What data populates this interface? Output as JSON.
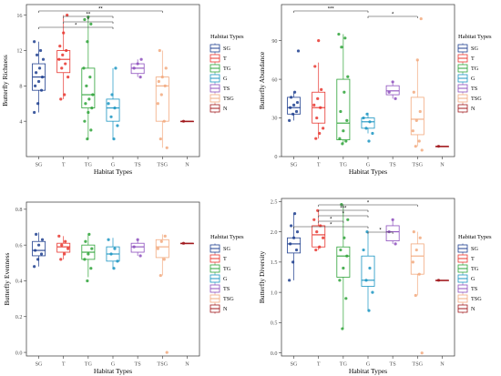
{
  "colors": {
    "SG": "#1f3f8f",
    "T": "#e8352e",
    "TG": "#2ea338",
    "G": "#1b95c2",
    "TS": "#8d4fbd",
    "TSG": "#f2a97e",
    "N": "#a1191d"
  },
  "chart_data": [
    {
      "type": "box",
      "categories": [
        "SG",
        "T",
        "TG",
        "G",
        "TS",
        "TSG",
        "N"
      ],
      "xlabel": "Habitat Types",
      "ylabel": "Butterfly Richness",
      "ylim": [
        0,
        17.2
      ],
      "yticks": [
        4,
        8,
        12,
        16
      ],
      "legend_title": "Habitat Types",
      "boxes": [
        {
          "q1": 7.5,
          "median": 9,
          "q3": 10.5,
          "lo": 5,
          "hi": 13
        },
        {
          "q1": 9.5,
          "median": 11,
          "q3": 12,
          "lo": 6.5,
          "hi": 16
        },
        {
          "q1": 5.5,
          "median": 7,
          "q3": 10,
          "lo": 2,
          "hi": 15.8
        },
        {
          "q1": 4,
          "median": 5.5,
          "q3": 6.5,
          "lo": 2,
          "hi": 10
        },
        {
          "q1": 9.4,
          "median": 10,
          "q3": 10.5,
          "lo": 9,
          "hi": 11
        },
        {
          "q1": 4,
          "median": 8,
          "q3": 9,
          "lo": 1,
          "hi": 12
        },
        {
          "q1": 4,
          "median": 4,
          "q3": 4,
          "lo": 4,
          "hi": 4
        }
      ],
      "points": [
        [
          5,
          6,
          7.5,
          8,
          8.5,
          9,
          9.5,
          10,
          11,
          11.5,
          12,
          13
        ],
        [
          6.5,
          7,
          9,
          10,
          10.5,
          11,
          11.5,
          12,
          12.5,
          14,
          16
        ],
        [
          2,
          3,
          4,
          5,
          5.5,
          6,
          6.5,
          7,
          8,
          9,
          10,
          13,
          15,
          15.5,
          15.8
        ],
        [
          2,
          3.5,
          4.5,
          5.5,
          6,
          7,
          10
        ],
        [
          9,
          10,
          10.5,
          11
        ],
        [
          1,
          2,
          4,
          6,
          7,
          8,
          8.5,
          9,
          10,
          12
        ],
        [
          4
        ]
      ],
      "significance": [
        {
          "from": 0,
          "to": 5,
          "label": "**"
        },
        {
          "from": 1,
          "to": 3,
          "label": "**"
        },
        {
          "from": 1,
          "to": 3,
          "label": "*"
        },
        {
          "from": 0,
          "to": 3,
          "label": "*"
        }
      ]
    },
    {
      "type": "box",
      "categories": [
        "SG",
        "T",
        "TG",
        "G",
        "TS",
        "TSG",
        "N"
      ],
      "xlabel": "Habitat Types",
      "ylabel": "Butterfly Abundance",
      "ylim": [
        0,
        118
      ],
      "yticks": [
        0,
        30,
        60,
        90
      ],
      "legend_title": "Habitat Types",
      "boxes": [
        {
          "q1": 33,
          "median": 38,
          "q3": 46,
          "lo": 28,
          "hi": 50
        },
        {
          "q1": 26,
          "median": 38,
          "q3": 50,
          "lo": 14,
          "hi": 73
        },
        {
          "q1": 13,
          "median": 26,
          "q3": 60,
          "lo": 10,
          "hi": 95
        },
        {
          "q1": 22,
          "median": 27,
          "q3": 30,
          "lo": 18,
          "hi": 34
        },
        {
          "q1": 48,
          "median": 51,
          "q3": 55,
          "lo": 45,
          "hi": 58
        },
        {
          "q1": 17,
          "median": 29,
          "q3": 46,
          "lo": 8,
          "hi": 75
        },
        {
          "q1": 8,
          "median": 8,
          "q3": 8,
          "lo": 8,
          "hi": 8
        }
      ],
      "points": [
        [
          28,
          33,
          35,
          38,
          40,
          42,
          46,
          50,
          82
        ],
        [
          14,
          18,
          22,
          30,
          38,
          40,
          45,
          52,
          70,
          90
        ],
        [
          10,
          12,
          14,
          20,
          28,
          35,
          50,
          62,
          85,
          92,
          95
        ],
        [
          12,
          18,
          22,
          27,
          30,
          33
        ],
        [
          45,
          50,
          58
        ],
        [
          5,
          8,
          12,
          20,
          28,
          35,
          50,
          75,
          107
        ],
        [
          8
        ]
      ],
      "significance": [
        {
          "from": 0,
          "to": 3,
          "label": "***"
        },
        {
          "from": 3,
          "to": 5,
          "label": "*"
        }
      ]
    },
    {
      "type": "box",
      "categories": [
        "SG",
        "T",
        "TG",
        "G",
        "TS",
        "TSG",
        "N"
      ],
      "xlabel": "Habitat Types",
      "ylabel": "Butterfly Evenness",
      "ylim": [
        -0.02,
        0.84
      ],
      "yticks": [
        0.0,
        0.2,
        0.4,
        0.6,
        0.8
      ],
      "legend_title": "Habitat Types",
      "boxes": [
        {
          "q1": 0.54,
          "median": 0.57,
          "q3": 0.62,
          "lo": 0.48,
          "hi": 0.67
        },
        {
          "q1": 0.56,
          "median": 0.59,
          "q3": 0.61,
          "lo": 0.52,
          "hi": 0.65
        },
        {
          "q1": 0.52,
          "median": 0.56,
          "q3": 0.6,
          "lo": 0.42,
          "hi": 0.66
        },
        {
          "q1": 0.51,
          "median": 0.55,
          "q3": 0.59,
          "lo": 0.47,
          "hi": 0.64
        },
        {
          "q1": 0.56,
          "median": 0.59,
          "q3": 0.61,
          "lo": 0.54,
          "hi": 0.63
        },
        {
          "q1": 0.53,
          "median": 0.59,
          "q3": 0.63,
          "lo": 0.43,
          "hi": 0.66
        },
        {
          "q1": 0.61,
          "median": 0.61,
          "q3": 0.61,
          "lo": 0.61,
          "hi": 0.61
        }
      ],
      "points": [
        [
          0.48,
          0.52,
          0.55,
          0.57,
          0.6,
          0.63,
          0.66
        ],
        [
          0.52,
          0.55,
          0.58,
          0.6,
          0.62,
          0.65
        ],
        [
          0.4,
          0.47,
          0.52,
          0.55,
          0.58,
          0.62,
          0.66
        ],
        [
          0.47,
          0.51,
          0.55,
          0.58,
          0.63
        ],
        [
          0.54,
          0.59,
          0.63
        ],
        [
          0.0,
          0.43,
          0.52,
          0.58,
          0.62,
          0.65
        ],
        [
          0.61
        ]
      ],
      "significance": []
    },
    {
      "type": "box",
      "categories": [
        "SG",
        "T",
        "TG",
        "G",
        "TS",
        "TSG",
        "N"
      ],
      "xlabel": "Habitat Types",
      "ylabel": "Butterfly Diversity",
      "ylim": [
        -0.05,
        2.55
      ],
      "yticks": [
        0.0,
        0.5,
        1.0,
        1.5,
        2.0,
        2.5
      ],
      "legend_title": "Habitat Types",
      "boxes": [
        {
          "q1": 1.65,
          "median": 1.8,
          "q3": 1.9,
          "lo": 1.2,
          "hi": 2.3
        },
        {
          "q1": 1.75,
          "median": 1.95,
          "q3": 2.1,
          "lo": 1.7,
          "hi": 2.35
        },
        {
          "q1": 1.25,
          "median": 1.6,
          "q3": 1.75,
          "lo": 0.4,
          "hi": 2.45
        },
        {
          "q1": 1.1,
          "median": 1.2,
          "q3": 1.6,
          "lo": 0.7,
          "hi": 2.0
        },
        {
          "q1": 1.85,
          "median": 2.0,
          "q3": 2.1,
          "lo": 1.8,
          "hi": 2.2
        },
        {
          "q1": 1.3,
          "median": 1.6,
          "q3": 1.8,
          "lo": 0.95,
          "hi": 2.0
        },
        {
          "q1": 1.2,
          "median": 1.2,
          "q3": 1.2,
          "lo": 1.2,
          "hi": 1.2
        }
      ],
      "points": [
        [
          1.2,
          1.5,
          1.7,
          1.8,
          1.9,
          2.0,
          2.1,
          2.3
        ],
        [
          1.7,
          1.75,
          1.9,
          2.0,
          2.1,
          2.2,
          2.35
        ],
        [
          0.4,
          0.9,
          1.2,
          1.4,
          1.6,
          1.7,
          1.9,
          2.2,
          2.45
        ],
        [
          0.7,
          1.0,
          1.2,
          1.4,
          1.7,
          2.0
        ],
        [
          1.8,
          2.0,
          2.2
        ],
        [
          0.0,
          0.95,
          1.3,
          1.5,
          1.7,
          1.9,
          2.0
        ],
        [
          1.2
        ]
      ],
      "significance": [
        {
          "from": 1,
          "to": 5,
          "label": "*"
        },
        {
          "from": 1,
          "to": 3,
          "label": "***"
        },
        {
          "from": 1,
          "to": 3,
          "label": "*"
        },
        {
          "from": 1,
          "to": 2,
          "label": "*"
        },
        {
          "from": 0,
          "to": 3,
          "label": "*"
        },
        {
          "from": 3,
          "to": 4,
          "label": "*"
        }
      ]
    }
  ]
}
